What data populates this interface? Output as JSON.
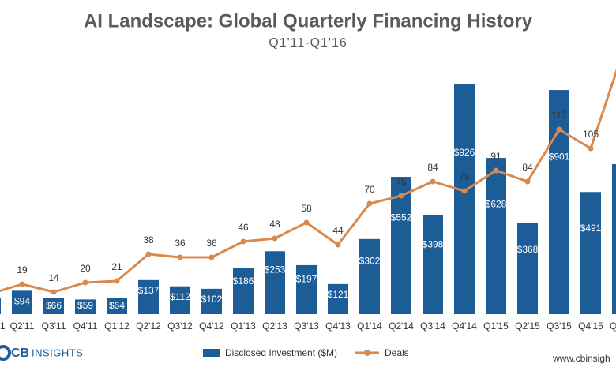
{
  "chart_data": {
    "type": "bar-line",
    "title": "AI Landscape: Global Quarterly Financing History",
    "subtitle": "Q1'11-Q1'16",
    "categories": [
      "1",
      "Q2'11",
      "Q3'11",
      "Q4'11",
      "Q1'12",
      "Q2'12",
      "Q3'12",
      "Q4'12",
      "Q1'13",
      "Q2'13",
      "Q3'13",
      "Q4'13",
      "Q1'14",
      "Q2'14",
      "Q3'14",
      "Q4'14",
      "Q1'15",
      "Q2'15",
      "Q3'15",
      "Q4'15",
      "Q"
    ],
    "series": [
      {
        "name": "Disclosed Investment ($M)",
        "type": "bar",
        "color": "#1c5d98",
        "values": [
          63,
          94,
          66,
          59,
          64,
          137,
          112,
          102,
          186,
          253,
          197,
          121,
          302,
          552,
          398,
          926,
          628,
          368,
          901,
          491,
          603
        ],
        "value_labels": [
          null,
          "$94",
          "$66",
          "$59",
          "$64",
          "$137",
          "$112",
          "$102",
          "$186",
          "$253",
          "$197",
          "$121",
          "$302",
          "$552",
          "$398",
          "$926",
          "$628",
          "$368",
          "$901",
          "$491",
          null
        ]
      },
      {
        "name": "Deals",
        "type": "line",
        "axis": "y2",
        "color": "#d9894b",
        "values": [
          13,
          19,
          14,
          20,
          21,
          38,
          36,
          36,
          46,
          48,
          58,
          44,
          70,
          75,
          84,
          78,
          91,
          84,
          117,
          105,
          165
        ],
        "value_labels": [
          null,
          "19",
          "14",
          "20",
          "21",
          "38",
          "36",
          "36",
          "46",
          "48",
          "58",
          "44",
          "70",
          "75",
          "84",
          "78",
          "91",
          "84",
          "117",
          "105",
          null
        ]
      }
    ],
    "ylim": [
      0,
      1263
    ],
    "y2lim": [
      0,
      199
    ],
    "logo": {
      "bold": "CB",
      "rest": "INSIGHTS"
    },
    "website": "www.cbinsigh"
  }
}
